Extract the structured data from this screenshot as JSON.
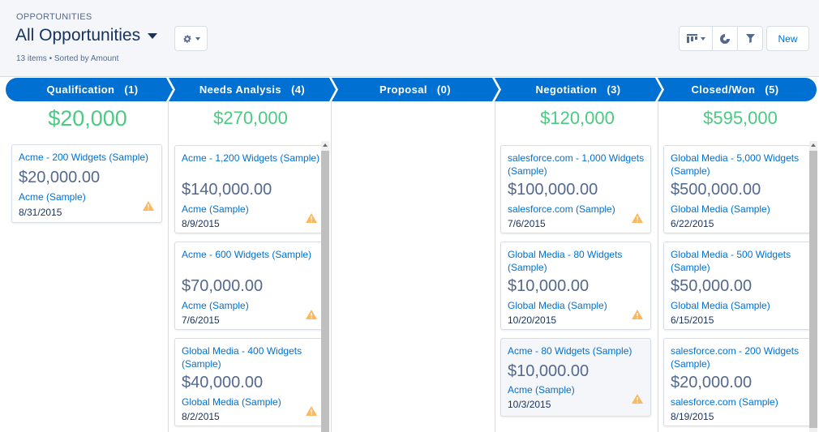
{
  "header": {
    "eyebrow": "OPPORTUNITIES",
    "title": "All Opportunities",
    "subtitle": "13 items • Sorted by Amount",
    "new_label": "New"
  },
  "icons": [
    "chevron-down-icon",
    "gear-icon",
    "kanban-icon",
    "chart-icon",
    "filter-icon",
    "warning-icon"
  ],
  "colors": {
    "path": "#0070d2",
    "total": "#4bca81",
    "link": "#0070d2",
    "warning": "#ffb75d"
  },
  "stages": [
    {
      "label": "Qualification   (1)",
      "total": "$20,000",
      "cards": [
        {
          "name": "Acme - 200 Widgets (Sample)",
          "amount": "$20,000.00",
          "account": "Acme (Sample)",
          "date": "8/31/2015"
        }
      ]
    },
    {
      "label": "Needs Analysis   (4)",
      "total": "$270,000",
      "cards": [
        {
          "name": "Acme - 1,200 Widgets (Sample)",
          "amount": "$140,000.00",
          "account": "Acme (Sample)",
          "date": "8/9/2015"
        },
        {
          "name": "Acme - 600 Widgets (Sample)",
          "amount": "$70,000.00",
          "account": "Acme (Sample)",
          "date": "7/6/2015"
        },
        {
          "name": "Global Media - 400 Widgets (Sample)",
          "amount": "$40,000.00",
          "account": "Global Media (Sample)",
          "date": "8/2/2015"
        }
      ]
    },
    {
      "label": "Proposal   (0)",
      "total": "",
      "cards": []
    },
    {
      "label": "Negotiation   (3)",
      "total": "$120,000",
      "cards": [
        {
          "name": "salesforce.com - 1,000 Widgets (Sample)",
          "amount": "$100,000.00",
          "account": "salesforce.com (Sample)",
          "date": "7/6/2015"
        },
        {
          "name": "Global Media - 80 Widgets (Sample)",
          "amount": "$10,000.00",
          "account": "Global Media (Sample)",
          "date": "10/20/2015"
        },
        {
          "name": "Acme - 80 Widgets (Sample)",
          "amount": "$10,000.00",
          "account": "Acme (Sample)",
          "date": "10/3/2015"
        }
      ]
    },
    {
      "label": "Closed/Won   (5)",
      "total": "$595,000",
      "cards": [
        {
          "name": "Global Media - 5,000 Widgets (Sample)",
          "amount": "$500,000.00",
          "account": "Global Media (Sample)",
          "date": "6/22/2015"
        },
        {
          "name": "Global Media - 500 Widgets (Sample)",
          "amount": "$50,000.00",
          "account": "Global Media (Sample)",
          "date": "6/15/2015"
        },
        {
          "name": "salesforce.com - 200 Widgets (Sample)",
          "amount": "$20,000.00",
          "account": "salesforce.com (Sample)",
          "date": "8/19/2015"
        }
      ]
    }
  ]
}
